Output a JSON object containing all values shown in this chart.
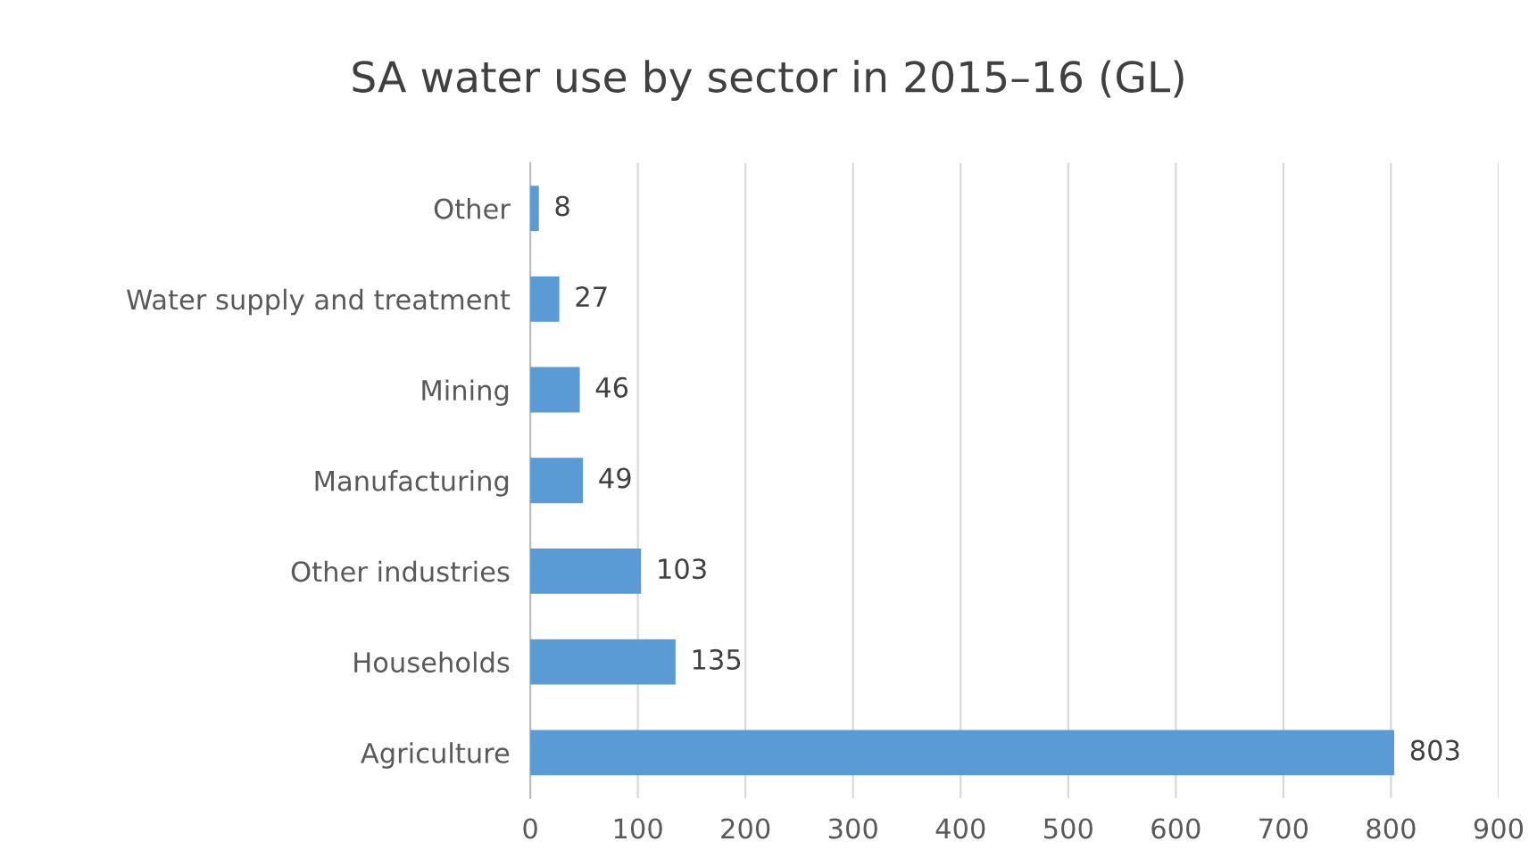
{
  "chart_data": {
    "type": "bar",
    "orientation": "horizontal",
    "title": "SA water use by sector in 2015–16 (GL)",
    "categories": [
      "Other",
      "Water supply and treatment",
      "Mining",
      "Manufacturing",
      "Other industries",
      "Households",
      "Agriculture"
    ],
    "values": [
      8,
      27,
      46,
      49,
      103,
      135,
      803
    ],
    "color": "#5b9bd5",
    "xlim": [
      0,
      900
    ],
    "xticks": [
      0,
      100,
      200,
      300,
      400,
      500,
      600,
      700,
      800,
      900
    ],
    "grid": "x",
    "data_labels": true
  }
}
